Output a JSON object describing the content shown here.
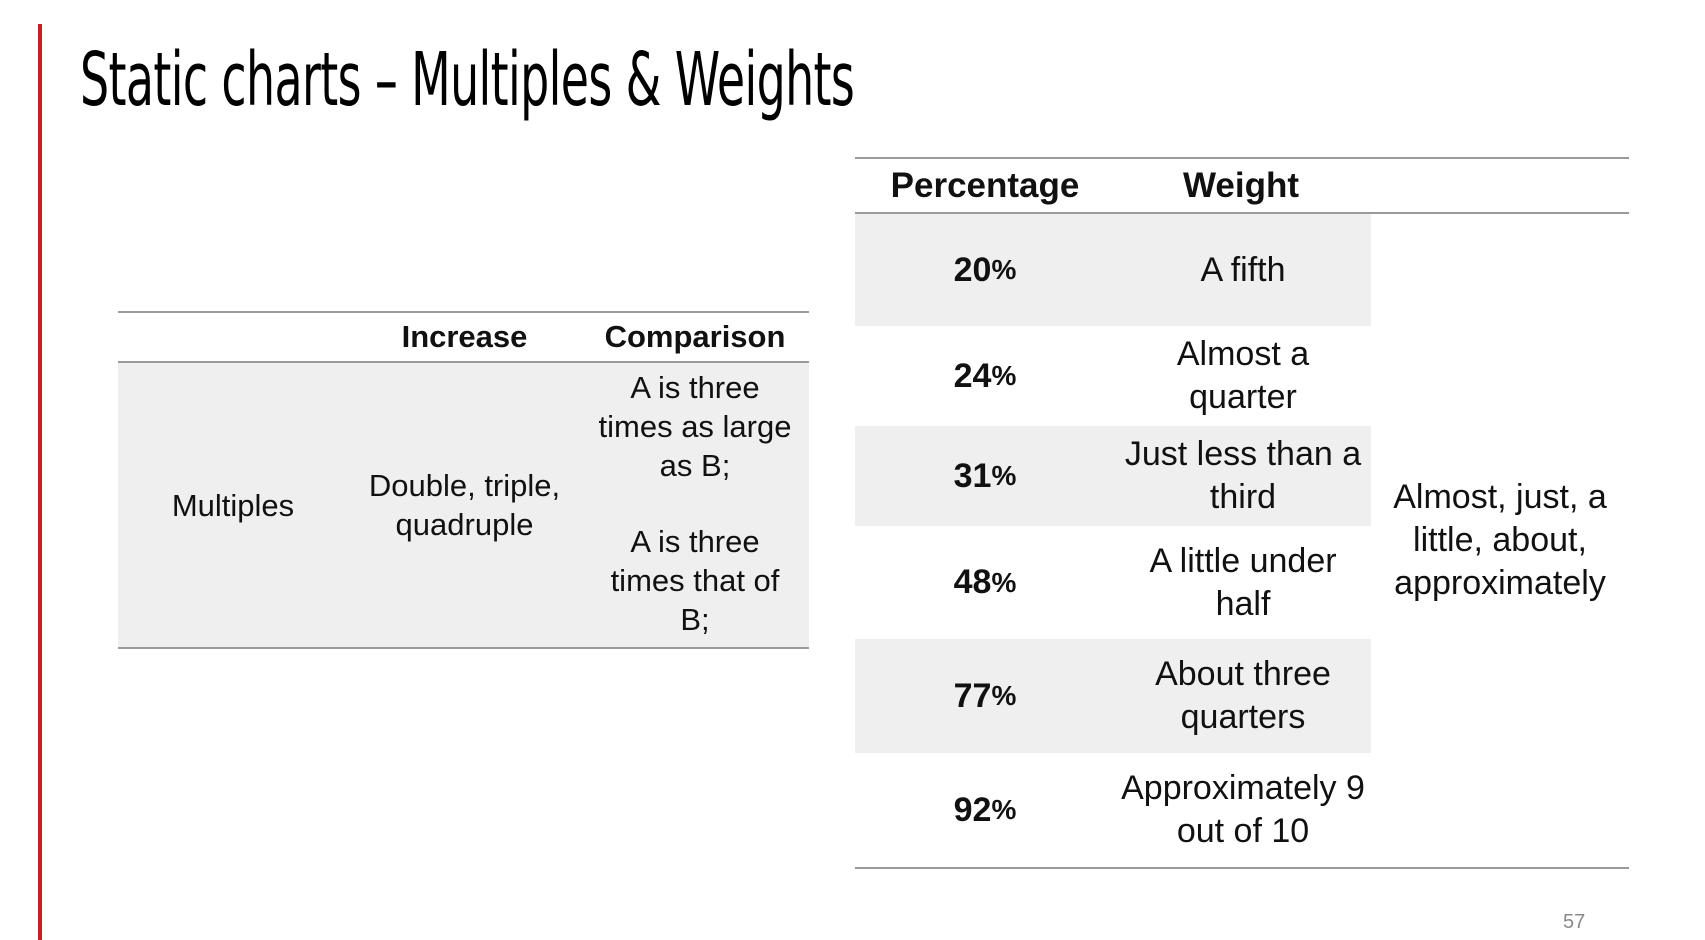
{
  "slide": {
    "title": "Static charts – Multiples & Weights",
    "page_number": "57",
    "accent_color": "#c81e1e"
  },
  "multiples_table": {
    "headers": [
      "",
      "Increase",
      "Comparison"
    ],
    "row": {
      "label": "Multiples",
      "increase": "Double, triple, quadruple",
      "comparison": [
        "A is three times as large as B;",
        "A is three times that of B;"
      ]
    },
    "shade_color": "#efefef"
  },
  "weights_table": {
    "headers": [
      "Percentage",
      "Weight",
      ""
    ],
    "rows": [
      {
        "pct": "20",
        "pct_symbol": "%",
        "weight": "A fifth",
        "shaded": true
      },
      {
        "pct": "24",
        "pct_symbol": "%",
        "weight": "Almost a quarter",
        "shaded": false
      },
      {
        "pct": "31",
        "pct_symbol": "%",
        "weight": "Just less than a third",
        "shaded": true
      },
      {
        "pct": "48",
        "pct_symbol": "%",
        "weight": "A little under half",
        "shaded": false
      },
      {
        "pct": "77",
        "pct_symbol": "%",
        "weight": "About three quarters",
        "shaded": true
      },
      {
        "pct": "92",
        "pct_symbol": "%",
        "weight": "Approximately 9 out of 10",
        "shaded": false
      }
    ],
    "qualifiers": "Almost, just, a little, about, approximately"
  }
}
